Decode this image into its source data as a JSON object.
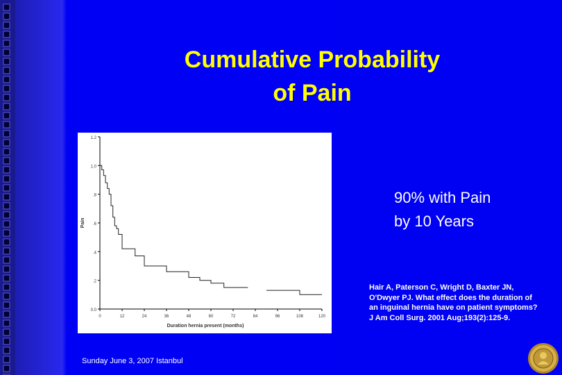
{
  "slide": {
    "title_line1": "Cumulative Probability",
    "title_line2": "of Pain",
    "annotation_line1": "90% with Pain",
    "annotation_line2": "by 10 Years",
    "citation_lines": [
      "Hair A, Paterson C, Wright D, Baxter JN,",
      "O'Dwyer PJ. What effect does the duration of",
      "an inguinal hernia have on patient symptoms?",
      "J Am Coll Surg. 2001 Aug;193(2):125-9."
    ],
    "footer": "Sunday June 3, 2007 Istanbul",
    "colors": {
      "background": "#0000f2",
      "title": "#ffff00",
      "text": "#ffffff",
      "left_band": "#1a1a90",
      "seal": "#c8a030"
    },
    "icons": {
      "seal": "gold-seal-icon",
      "squares": "square-pattern-icon"
    }
  },
  "chart_data": {
    "type": "line",
    "step": true,
    "title": "",
    "xlabel": "Duration hernia present (months)",
    "ylabel": "Pain",
    "xlim": [
      0,
      120
    ],
    "ylim": [
      0,
      1.2
    ],
    "x_ticks": [
      0,
      12,
      24,
      36,
      48,
      60,
      72,
      84,
      96,
      108,
      120
    ],
    "y_ticks": [
      0.0,
      0.2,
      0.4,
      0.6,
      0.8,
      1.0,
      1.2
    ],
    "y_tick_labels": [
      "0.0",
      ".2",
      ".4",
      ".6",
      ".8",
      "1.0",
      "1.2"
    ],
    "grid": false,
    "series": [
      {
        "points": [
          [
            0,
            1.0
          ],
          [
            1,
            1.0
          ],
          [
            1,
            0.97
          ],
          [
            2,
            0.97
          ],
          [
            2,
            0.93
          ],
          [
            3,
            0.93
          ],
          [
            3,
            0.88
          ],
          [
            4,
            0.88
          ],
          [
            4,
            0.84
          ],
          [
            5,
            0.84
          ],
          [
            5,
            0.8
          ],
          [
            6,
            0.8
          ],
          [
            6,
            0.72
          ],
          [
            7,
            0.72
          ],
          [
            7,
            0.64
          ],
          [
            8,
            0.64
          ],
          [
            8,
            0.58
          ],
          [
            9,
            0.58
          ],
          [
            9,
            0.56
          ],
          [
            10,
            0.56
          ],
          [
            10,
            0.52
          ],
          [
            12,
            0.52
          ],
          [
            12,
            0.42
          ],
          [
            19,
            0.42
          ],
          [
            19,
            0.37
          ],
          [
            24,
            0.37
          ],
          [
            24,
            0.3
          ],
          [
            36,
            0.3
          ],
          [
            36,
            0.26
          ],
          [
            48,
            0.26
          ],
          [
            48,
            0.22
          ],
          [
            54,
            0.22
          ],
          [
            54,
            0.2
          ],
          [
            60,
            0.2
          ],
          [
            60,
            0.18
          ],
          [
            67,
            0.18
          ],
          [
            67,
            0.15
          ],
          [
            80,
            0.15
          ]
        ]
      },
      {
        "points": [
          [
            90,
            0.13
          ],
          [
            108,
            0.13
          ],
          [
            108,
            0.1
          ],
          [
            120,
            0.1
          ]
        ]
      }
    ]
  }
}
